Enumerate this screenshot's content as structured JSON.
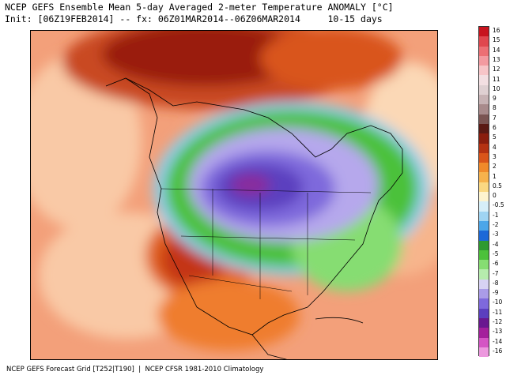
{
  "header": {
    "title": "NCEP GEFS Ensemble Mean 5-day Averaged 2-meter Temperature ANOMALY [°C]",
    "init_line": "Init: [06Z19FEB2014] -- fx: 06Z01MAR2014--06Z06MAR2014     10-15 days"
  },
  "footer": {
    "text": "NCEP GEFS Forecast Grid [T252|T190]  |  NCEP CFSR 1981-2010 Climatology"
  },
  "legend": {
    "labels": [
      "16",
      "15",
      "14",
      "13",
      "12",
      "11",
      "10",
      "9",
      "8",
      "7",
      "6",
      "5",
      "4",
      "3",
      "2",
      "1",
      "0.5",
      "0",
      "-0.5",
      "-1",
      "-2",
      "-3",
      "-4",
      "-5",
      "-6",
      "-7",
      "-8",
      "-9",
      "-10",
      "-11",
      "-12",
      "-13",
      "-14",
      "-16"
    ],
    "colors": [
      "#c8141e",
      "#e0474e",
      "#ec6f74",
      "#f39aa0",
      "#f7c5c8",
      "#f3dfe2",
      "#dfd0d2",
      "#c7b2b4",
      "#a88a8b",
      "#7a5452",
      "#5a1a14",
      "#8a1e0e",
      "#b43212",
      "#d9551a",
      "#f08a2a",
      "#f6b24c",
      "#fad882",
      "#fdf3cf",
      "#d6eef8",
      "#9fd4f2",
      "#4ca6e8",
      "#1c68d8",
      "#2e9a30",
      "#4cc13a",
      "#86dd72",
      "#b6ecad",
      "#d7d2f3",
      "#aa9ce8",
      "#7e69dc",
      "#5b3fbf",
      "#6a1890",
      "#a4209c",
      "#d455c4",
      "#ec98de"
    ]
  },
  "map": {
    "region": "North America",
    "feature": "Cold anomaly centered over central Canada and northern U.S.; warm anomalies over Alaska, Arctic and western Atlantic"
  }
}
